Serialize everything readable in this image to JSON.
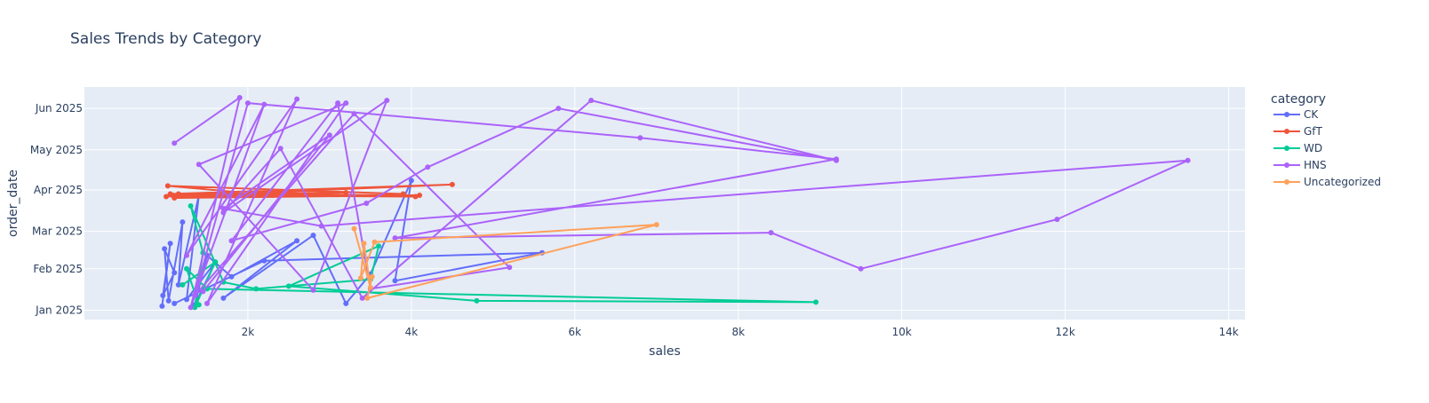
{
  "chart_data": {
    "type": "line",
    "title": "Sales Trends by Category",
    "xlabel": "sales",
    "ylabel": "order_date",
    "xlim": [
      0,
      14200
    ],
    "xticks": [
      2000,
      4000,
      6000,
      8000,
      10000,
      12000,
      14000
    ],
    "xtick_labels": [
      "2k",
      "4k",
      "6k",
      "8k",
      "10k",
      "12k",
      "14k"
    ],
    "ylim": [
      "2024-12-25",
      "2025-06-17"
    ],
    "yticks": [
      "2025-01-01",
      "2025-02-01",
      "2025-03-01",
      "2025-04-01",
      "2025-05-01",
      "2025-06-01"
    ],
    "ytick_labels": [
      "Jan 2025",
      "Feb 2025",
      "Mar 2025",
      "Apr 2025",
      "May 2025",
      "Jun 2025"
    ],
    "grid": true,
    "legend_title": "category",
    "legend_position": "right",
    "plot_bg": "#e5ecf6",
    "series": [
      {
        "name": "CK",
        "color": "#636efa",
        "points": [
          [
            950,
            "2025-01-04"
          ],
          [
            1050,
            "2025-02-20"
          ],
          [
            960,
            "2025-01-12"
          ],
          [
            1100,
            "2025-01-29"
          ],
          [
            980,
            "2025-02-16"
          ],
          [
            1030,
            "2025-01-08"
          ],
          [
            1200,
            "2025-03-08"
          ],
          [
            1150,
            "2025-01-20"
          ],
          [
            1400,
            "2025-03-28"
          ],
          [
            1250,
            "2025-01-09"
          ],
          [
            1600,
            "2025-02-06"
          ],
          [
            1350,
            "2025-01-05"
          ],
          [
            1500,
            "2025-02-11"
          ],
          [
            1800,
            "2025-01-26"
          ],
          [
            2600,
            "2025-02-22"
          ],
          [
            1700,
            "2025-01-10"
          ],
          [
            2800,
            "2025-02-26"
          ],
          [
            3200,
            "2025-01-06"
          ],
          [
            3500,
            "2025-01-28"
          ],
          [
            4000,
            "2025-04-08"
          ],
          [
            3800,
            "2025-01-23"
          ],
          [
            5600,
            "2025-02-13"
          ],
          [
            2200,
            "2025-02-07"
          ],
          [
            1100,
            "2025-01-06"
          ]
        ]
      },
      {
        "name": "GfT",
        "color": "#ef553b",
        "points": [
          [
            1000,
            "2025-03-27"
          ],
          [
            4500,
            "2025-04-05"
          ],
          [
            1050,
            "2025-03-29"
          ],
          [
            4100,
            "2025-03-28"
          ],
          [
            1100,
            "2025-03-26"
          ],
          [
            3200,
            "2025-03-30"
          ],
          [
            1150,
            "2025-03-29"
          ],
          [
            4050,
            "2025-03-27"
          ],
          [
            1080,
            "2025-03-28"
          ],
          [
            2300,
            "2025-03-28"
          ],
          [
            1020,
            "2025-04-04"
          ],
          [
            3900,
            "2025-03-29"
          ]
        ]
      },
      {
        "name": "WD",
        "color": "#00cc96",
        "points": [
          [
            1200,
            "2025-01-20"
          ],
          [
            1600,
            "2025-02-06"
          ],
          [
            1350,
            "2025-01-03"
          ],
          [
            1450,
            "2025-02-13"
          ],
          [
            1300,
            "2025-03-20"
          ],
          [
            1700,
            "2025-01-22"
          ],
          [
            2100,
            "2025-01-17"
          ],
          [
            3500,
            "2025-01-24"
          ],
          [
            3600,
            "2025-02-18"
          ],
          [
            2500,
            "2025-01-19"
          ],
          [
            4800,
            "2025-01-08"
          ],
          [
            8950,
            "2025-01-07"
          ],
          [
            1500,
            "2025-01-17"
          ],
          [
            1250,
            "2025-02-01"
          ],
          [
            1400,
            "2025-01-05"
          ]
        ]
      },
      {
        "name": "HNS",
        "color": "#ab63fa",
        "points": [
          [
            1100,
            "2025-05-06"
          ],
          [
            1900,
            "2025-06-09"
          ],
          [
            1300,
            "2025-01-03"
          ],
          [
            2200,
            "2025-06-04"
          ],
          [
            1250,
            "2025-02-11"
          ],
          [
            2600,
            "2025-06-08"
          ],
          [
            1500,
            "2025-01-06"
          ],
          [
            3200,
            "2025-06-05"
          ],
          [
            1400,
            "2025-04-20"
          ],
          [
            2800,
            "2025-01-16"
          ],
          [
            3700,
            "2025-06-07"
          ],
          [
            1700,
            "2025-03-15"
          ],
          [
            2400,
            "2025-05-02"
          ],
          [
            3400,
            "2025-01-10"
          ],
          [
            6200,
            "2025-06-07"
          ],
          [
            9200,
            "2025-04-23"
          ],
          [
            5800,
            "2025-06-01"
          ],
          [
            4200,
            "2025-04-18"
          ],
          [
            3450,
            "2025-03-22"
          ],
          [
            1800,
            "2025-02-22"
          ],
          [
            3100,
            "2025-06-05"
          ],
          [
            3500,
            "2025-01-17"
          ],
          [
            5200,
            "2025-02-02"
          ],
          [
            3300,
            "2025-05-28"
          ],
          [
            1350,
            "2025-01-12"
          ],
          [
            2000,
            "2025-06-05"
          ],
          [
            6800,
            "2025-05-10"
          ],
          [
            9200,
            "2025-04-24"
          ],
          [
            3800,
            "2025-02-24"
          ],
          [
            8400,
            "2025-02-28"
          ],
          [
            9500,
            "2025-02-01"
          ],
          [
            11900,
            "2025-03-10"
          ],
          [
            13500,
            "2025-04-23"
          ],
          [
            2900,
            "2025-03-05"
          ],
          [
            1700,
            "2025-03-18"
          ],
          [
            3000,
            "2025-05-12"
          ],
          [
            1450,
            "2025-01-15"
          ]
        ]
      },
      {
        "name": "Uncategorized",
        "color": "#ffa15a",
        "points": [
          [
            3300,
            "2025-03-03"
          ],
          [
            3500,
            "2025-01-18"
          ],
          [
            3420,
            "2025-02-20"
          ],
          [
            3380,
            "2025-01-25"
          ],
          [
            3550,
            "2025-02-21"
          ],
          [
            7000,
            "2025-03-06"
          ],
          [
            3460,
            "2025-01-10"
          ],
          [
            3520,
            "2025-01-26"
          ]
        ]
      }
    ]
  }
}
